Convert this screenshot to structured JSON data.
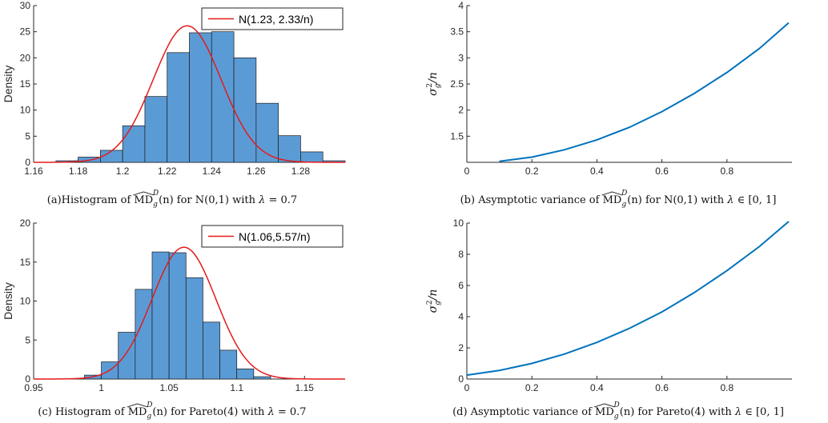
{
  "chart_data": [
    {
      "id": "a",
      "type": "bar",
      "subtype": "histogram",
      "ylabel": "Density",
      "xlim": [
        1.16,
        1.3
      ],
      "ylim": [
        0,
        30
      ],
      "xticks": [
        "1.16",
        "1.18",
        "1.2",
        "1.22",
        "1.24",
        "1.26",
        "1.28"
      ],
      "yticks": [
        "0",
        "5",
        "10",
        "15",
        "20",
        "25",
        "30"
      ],
      "bins": [
        {
          "x0": 1.17,
          "x1": 1.18,
          "value": 0.3
        },
        {
          "x0": 1.18,
          "x1": 1.19,
          "value": 1.0
        },
        {
          "x0": 1.19,
          "x1": 1.2,
          "value": 2.3
        },
        {
          "x0": 1.2,
          "x1": 1.21,
          "value": 7.0
        },
        {
          "x0": 1.21,
          "x1": 1.22,
          "value": 12.6
        },
        {
          "x0": 1.22,
          "x1": 1.23,
          "value": 21.0
        },
        {
          "x0": 1.23,
          "x1": 1.24,
          "value": 24.8
        },
        {
          "x0": 1.24,
          "x1": 1.25,
          "value": 25.0
        },
        {
          "x0": 1.25,
          "x1": 1.26,
          "value": 20.0
        },
        {
          "x0": 1.26,
          "x1": 1.27,
          "value": 11.3
        },
        {
          "x0": 1.27,
          "x1": 1.28,
          "value": 5.1
        },
        {
          "x0": 1.28,
          "x1": 1.29,
          "value": 2.0
        },
        {
          "x0": 1.29,
          "x1": 1.3,
          "value": 0.3
        }
      ],
      "curve": {
        "mean": 1.229,
        "sd": 0.01527
      },
      "legend": [
        "N(1.23, 2.33/n)"
      ],
      "legend_position": "top-right",
      "bar_color": "#5b9bd5",
      "line_color": "#e41a1c",
      "caption": {
        "pre": "(a)Histogram of ",
        "md": "MD",
        "sup": "D",
        "sub": "g",
        "arg": "(n)",
        "post": " for N(0,1) with ",
        "lam": "λ",
        "eq": " = 0.7"
      }
    },
    {
      "id": "b",
      "type": "line",
      "ylabel_sym": "σ",
      "ylabel_sub": "g",
      "ylabel_sup": "2",
      "ylabel_tail": "/n",
      "xlim": [
        0,
        1
      ],
      "ylim": [
        1,
        4
      ],
      "xticks": [
        "0",
        "0.2",
        "0.4",
        "0.6",
        "0.8"
      ],
      "yticks": [
        "1.5",
        "2",
        "2.5",
        "3",
        "3.5",
        "4"
      ],
      "x": [
        0.1,
        0.2,
        0.3,
        0.4,
        0.5,
        0.6,
        0.7,
        0.8,
        0.9,
        0.99
      ],
      "y": [
        1.02,
        1.1,
        1.24,
        1.43,
        1.67,
        1.97,
        2.32,
        2.72,
        3.18,
        3.67
      ],
      "line_color": "#0072bd",
      "caption": {
        "pre": "(b) Asymptotic variance of ",
        "md": "MD",
        "sup": "D",
        "sub": "g",
        "arg": "(n)",
        "post": " for N(0,1) with ",
        "lam": "λ",
        "eq": " ∈ [0, 1]"
      }
    },
    {
      "id": "c",
      "type": "bar",
      "subtype": "histogram",
      "ylabel": "Density",
      "xlim": [
        0.95,
        1.18
      ],
      "ylim": [
        0,
        20
      ],
      "xticks": [
        "0.95",
        "1",
        "1.05",
        "1.1",
        "1.15"
      ],
      "yticks": [
        "0",
        "5",
        "10",
        "15",
        "20"
      ],
      "bins": [
        {
          "x0": 0.9875,
          "x1": 1.0,
          "value": 0.5
        },
        {
          "x0": 1.0,
          "x1": 1.0125,
          "value": 2.2
        },
        {
          "x0": 1.0125,
          "x1": 1.025,
          "value": 6.0
        },
        {
          "x0": 1.025,
          "x1": 1.0375,
          "value": 11.5
        },
        {
          "x0": 1.0375,
          "x1": 1.05,
          "value": 16.3
        },
        {
          "x0": 1.05,
          "x1": 1.0625,
          "value": 16.2
        },
        {
          "x0": 1.0625,
          "x1": 1.075,
          "value": 13.0
        },
        {
          "x0": 1.075,
          "x1": 1.0875,
          "value": 7.3
        },
        {
          "x0": 1.0875,
          "x1": 1.1,
          "value": 3.7
        },
        {
          "x0": 1.1,
          "x1": 1.1125,
          "value": 1.3
        },
        {
          "x0": 1.1125,
          "x1": 1.125,
          "value": 0.3
        }
      ],
      "curve": {
        "mean": 1.061,
        "sd": 0.0236
      },
      "legend": [
        "N(1.06,5.57/n)"
      ],
      "legend_position": "top-right",
      "bar_color": "#5b9bd5",
      "line_color": "#e41a1c",
      "caption": {
        "pre": "(c) Histogram of ",
        "md": "MD",
        "sup": "D",
        "sub": "g",
        "arg": "(n)",
        "post": " for Pareto(4) with ",
        "lam": "λ",
        "eq": " = 0.7"
      }
    },
    {
      "id": "d",
      "type": "line",
      "ylabel_sym": "σ",
      "ylabel_sub": "g",
      "ylabel_sup": "2",
      "ylabel_tail": "/n",
      "xlim": [
        0,
        1
      ],
      "ylim": [
        0,
        10
      ],
      "xticks": [
        "0",
        "0.2",
        "0.4",
        "0.6",
        "0.8"
      ],
      "yticks": [
        "0",
        "2",
        "4",
        "6",
        "8",
        "10"
      ],
      "x": [
        0,
        0.1,
        0.2,
        0.3,
        0.4,
        0.5,
        0.6,
        0.7,
        0.8,
        0.9,
        0.99
      ],
      "y": [
        0.25,
        0.55,
        1.0,
        1.6,
        2.35,
        3.25,
        4.3,
        5.55,
        6.95,
        8.5,
        10.1
      ],
      "line_color": "#0072bd",
      "caption": {
        "pre": "(d) Asymptotic variance of ",
        "md": "MD",
        "sup": "D",
        "sub": "g",
        "arg": "(n)",
        "post": " for Pareto(4) with ",
        "lam": "λ",
        "eq": " ∈ [0, 1]"
      }
    }
  ]
}
